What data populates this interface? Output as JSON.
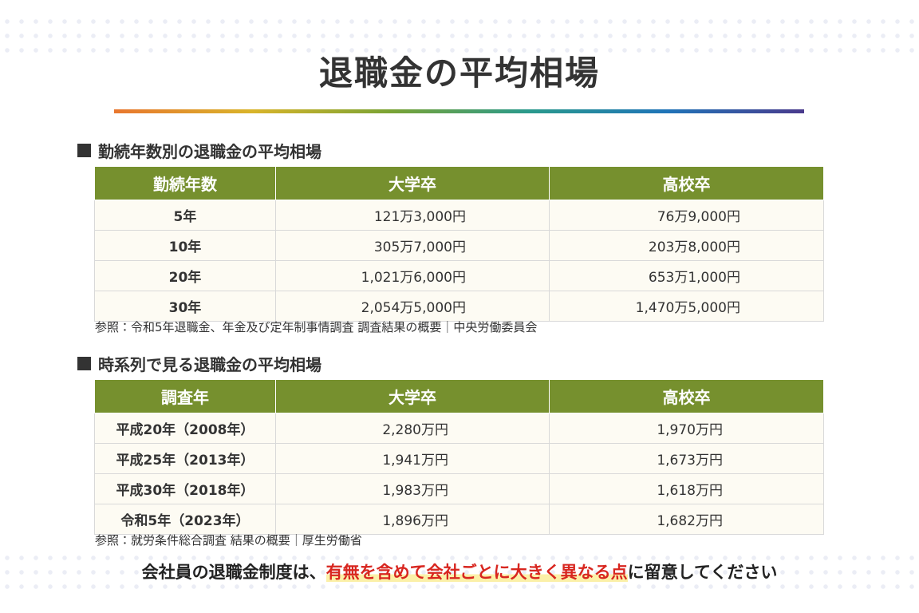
{
  "header": {
    "title": "退職金の平均相場"
  },
  "sections": [
    {
      "heading": "勤続年数別の退職金の平均相場",
      "table": {
        "header": [
          "勤続年数",
          "大学卒",
          "高校卒"
        ],
        "rows": [
          [
            "5年",
            "121万3,000円",
            "76万9,000円"
          ],
          [
            "10年",
            "305万7,000円",
            "203万8,000円"
          ],
          [
            "20年",
            "1,021万6,000円",
            "653万1,000円"
          ],
          [
            "30年",
            "2,054万5,000円",
            "1,470万5,000円"
          ]
        ]
      },
      "source": "参照：令和5年退職金、年金及び定年制事情調査 調査結果の概要｜中央労働委員会"
    },
    {
      "heading": "時系列で見る退職金の平均相場",
      "table": {
        "header": [
          "調査年",
          "大学卒",
          "高校卒"
        ],
        "rows": [
          [
            "平成20年（2008年）",
            "2,280万円",
            "1,970万円"
          ],
          [
            "平成25年（2013年）",
            "1,941万円",
            "1,673万円"
          ],
          [
            "平成30年（2018年）",
            "1,983万円",
            "1,618万円"
          ],
          [
            "令和5年（2023年）",
            "1,896万円",
            "1,682万円"
          ]
        ]
      },
      "source": "参照：就労条件総合調査 結果の概要｜厚生労働省"
    }
  ],
  "footer": {
    "before": "会社員の退職金制度は、",
    "highlight": "有無を含めて会社ごとに大きく異なる点",
    "after": "に留意してください"
  }
}
